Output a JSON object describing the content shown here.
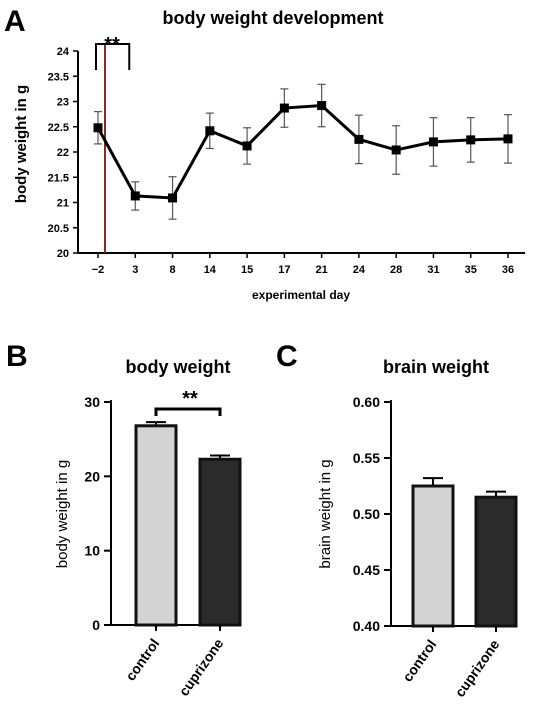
{
  "panels": {
    "A": {
      "letter": "A"
    },
    "B": {
      "letter": "B"
    },
    "C": {
      "letter": "C"
    }
  },
  "chart_data": [
    {
      "type": "line",
      "title": "body weight development",
      "xlabel": "experimental day",
      "ylabel": "body weight in g",
      "categories": [
        "−2",
        "3",
        "8",
        "14",
        "15",
        "17",
        "21",
        "24",
        "28",
        "31",
        "35",
        "36"
      ],
      "yticks": [
        "20",
        "20.5",
        "21",
        "21.5",
        "22",
        "22.5",
        "23",
        "23.5",
        "24"
      ],
      "ylim": [
        20,
        24
      ],
      "series": [
        {
          "values": [
            22.48,
            21.13,
            21.09,
            22.42,
            22.12,
            22.87,
            22.92,
            22.25,
            22.04,
            22.2,
            22.24,
            22.26
          ],
          "error": [
            0.32,
            0.28,
            0.42,
            0.35,
            0.36,
            0.38,
            0.42,
            0.48,
            0.48,
            0.48,
            0.44,
            0.48
          ]
        }
      ],
      "annotations": [
        {
          "text": "**",
          "span": [
            "−2",
            "3"
          ]
        },
        {
          "type": "vertical-line",
          "at": "−2",
          "color": "#8b2a1f"
        }
      ],
      "grid": false
    },
    {
      "type": "bar",
      "title": "body weight",
      "xlabel": "",
      "ylabel": "body weight in g",
      "categories": [
        "control",
        "cuprizone"
      ],
      "values": [
        26.8,
        22.3
      ],
      "error": [
        0.5,
        0.5
      ],
      "colors": [
        "#d3d3d3",
        "#2b2b2b"
      ],
      "yticks": [
        "0",
        "10",
        "20",
        "30"
      ],
      "ylim": [
        0,
        30
      ],
      "annotations": [
        {
          "text": "**",
          "span": [
            "control",
            "cuprizone"
          ]
        }
      ],
      "grid": false
    },
    {
      "type": "bar",
      "title": "brain weight",
      "xlabel": "",
      "ylabel": "brain weight in g",
      "categories": [
        "control",
        "cuprizone"
      ],
      "values": [
        0.525,
        0.515
      ],
      "error": [
        0.007,
        0.005
      ],
      "colors": [
        "#d3d3d3",
        "#2b2b2b"
      ],
      "yticks": [
        "0.40",
        "0.45",
        "0.50",
        "0.55",
        "0.60"
      ],
      "ylim": [
        0.4,
        0.6
      ],
      "grid": false
    }
  ]
}
